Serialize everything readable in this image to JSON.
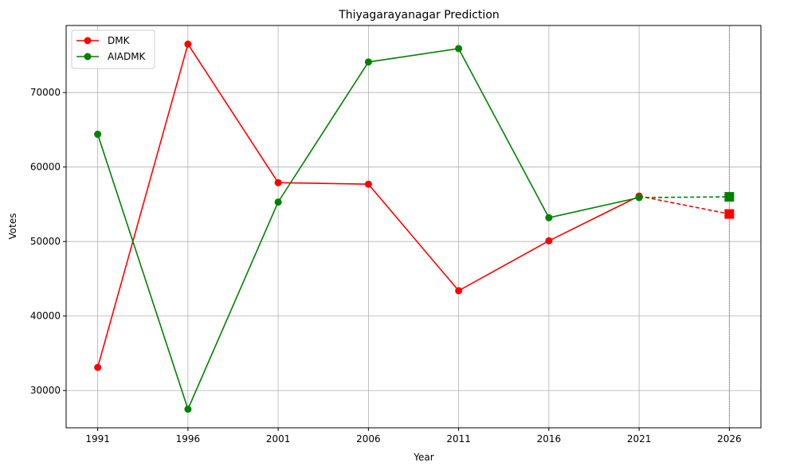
{
  "chart_data": {
    "type": "line",
    "title": "Thiyagarayanagar Prediction",
    "xlabel": "Year",
    "ylabel": "Votes",
    "x": [
      1991,
      1996,
      2001,
      2006,
      2011,
      2016,
      2021
    ],
    "xticks": [
      "1991",
      "1996",
      "2001",
      "2006",
      "2011",
      "2016",
      "2021",
      "2026"
    ],
    "xlim": [
      1989.25,
      2027.75
    ],
    "yticks": [
      "30000",
      "40000",
      "50000",
      "60000",
      "70000"
    ],
    "ylim": [
      25000,
      79000
    ],
    "grid": true,
    "legend_position": "top-left",
    "prediction_year": 2026,
    "series": [
      {
        "name": "DMK",
        "color": "#ff0000",
        "values": [
          33100,
          76500,
          57900,
          57700,
          43400,
          50100,
          56100
        ],
        "prediction": 53700
      },
      {
        "name": "AIADMK",
        "color": "#008000",
        "values": [
          64400,
          27500,
          55300,
          74100,
          75900,
          53200,
          55900
        ],
        "prediction": 56000
      }
    ]
  }
}
